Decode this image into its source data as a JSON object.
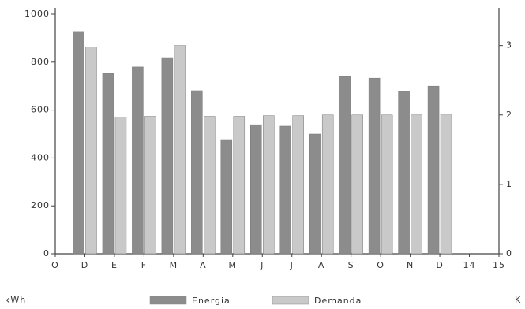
{
  "chart_data": {
    "type": "bar",
    "categories": [
      "O",
      "D",
      "E",
      "F",
      "M",
      "A",
      "M",
      "J",
      "J",
      "A",
      "S",
      "O",
      "N",
      "D",
      "14",
      "15"
    ],
    "series": [
      {
        "name": "Energia",
        "color": "#8c8c8c",
        "values": [
          null,
          928,
          753,
          780,
          819,
          681,
          477,
          539,
          533,
          500,
          740,
          733,
          678,
          700,
          null,
          null
        ]
      },
      {
        "name": "Demanda",
        "color": "#c9c9c9",
        "axis": "y2",
        "values": [
          null,
          2.98,
          1.97,
          1.98,
          3.0,
          1.98,
          1.98,
          1.99,
          1.99,
          2.0,
          2.0,
          2.0,
          2.0,
          2.01,
          null,
          null
        ]
      }
    ],
    "ylim": [
      0,
      1000
    ],
    "yticks": [
      0,
      200,
      400,
      600,
      800,
      1000
    ],
    "y2lim": [
      0,
      3.45
    ],
    "y2ticks": [
      0,
      1,
      2,
      3
    ],
    "y_label": "kWh",
    "y2_label": "K",
    "legend": "bottom"
  }
}
